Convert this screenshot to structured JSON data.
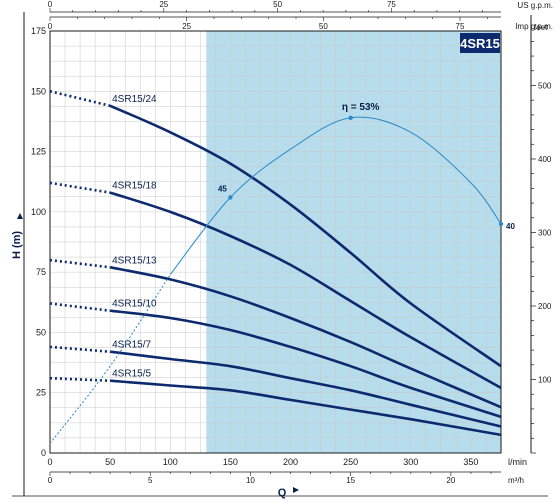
{
  "chart_data": {
    "type": "line",
    "model_badge": "4SR15",
    "colors": {
      "curve": "#0d2a6e",
      "efficiency": "#2a8ac8",
      "region": "#b7dcec",
      "grid": "#c9c9c9",
      "badge": "#0d2a6e"
    },
    "y_axis": {
      "label": "H (m)",
      "range": [
        0,
        175
      ],
      "ticks": [
        "0",
        "25",
        "50",
        "75",
        "100",
        "125",
        "150",
        "175"
      ]
    },
    "y2_axis": {
      "unit": "feet",
      "range": [
        0,
        574.1
      ],
      "ticks": [
        "100",
        "200",
        "300",
        "400",
        "500"
      ]
    },
    "x_axis": {
      "label": "Q",
      "unit": "l/min",
      "range": [
        0,
        375
      ],
      "ticks": [
        "0",
        "50",
        "100",
        "150",
        "200",
        "250",
        "300",
        "350"
      ]
    },
    "x_m3h_axis": {
      "unit": "m³/h",
      "range": [
        0,
        22.5
      ],
      "ticks": [
        "0",
        "5",
        "10",
        "15",
        "20"
      ]
    },
    "x_us_gpm_axis": {
      "unit": "US g.p.m.",
      "range": [
        0,
        99.07
      ],
      "ticks": [
        "0",
        "25",
        "50",
        "75"
      ]
    },
    "x_imp_gpm_axis": {
      "unit": "Imp g.p.m.",
      "range": [
        0,
        82.5
      ],
      "ticks": [
        "0",
        "25",
        "50",
        "75"
      ]
    },
    "operating_region": {
      "x_from": 130,
      "x_to": 375
    },
    "series": [
      {
        "name": "4SR15/24",
        "x": [
          0,
          50,
          100,
          150,
          200,
          250,
          300,
          375
        ],
        "y": [
          150,
          144,
          133,
          120,
          103,
          83,
          62,
          36
        ]
      },
      {
        "name": "4SR15/18",
        "x": [
          0,
          50,
          100,
          150,
          200,
          250,
          300,
          375
        ],
        "y": [
          112,
          108,
          100,
          90,
          78,
          63,
          48,
          27
        ]
      },
      {
        "name": "4SR15/13",
        "x": [
          0,
          50,
          100,
          150,
          200,
          250,
          300,
          375
        ],
        "y": [
          80,
          77,
          72,
          65,
          56,
          46,
          35,
          19
        ]
      },
      {
        "name": "4SR15/10",
        "x": [
          0,
          50,
          100,
          150,
          200,
          250,
          300,
          375
        ],
        "y": [
          62,
          59,
          56,
          51,
          44,
          36,
          27,
          15
        ]
      },
      {
        "name": "4SR15/7",
        "x": [
          0,
          50,
          100,
          150,
          200,
          250,
          300,
          375
        ],
        "y": [
          44,
          42,
          39,
          36,
          31,
          26,
          20,
          11
        ]
      },
      {
        "name": "4SR15/5",
        "x": [
          0,
          50,
          100,
          150,
          200,
          250,
          300,
          375
        ],
        "y": [
          31,
          30,
          28,
          26,
          22,
          18,
          14,
          7.5
        ]
      }
    ],
    "efficiency_curve": {
      "label": "η = 53%",
      "x": [
        0,
        50,
        100,
        150,
        200,
        250,
        300,
        350,
        375
      ],
      "y": [
        4,
        36,
        74,
        106,
        126,
        139,
        133,
        112,
        95
      ],
      "points": [
        {
          "label": "45",
          "x": 150,
          "y": 106
        },
        {
          "label": "40",
          "x": 375,
          "y": 95
        }
      ],
      "peak_x": 250
    }
  }
}
